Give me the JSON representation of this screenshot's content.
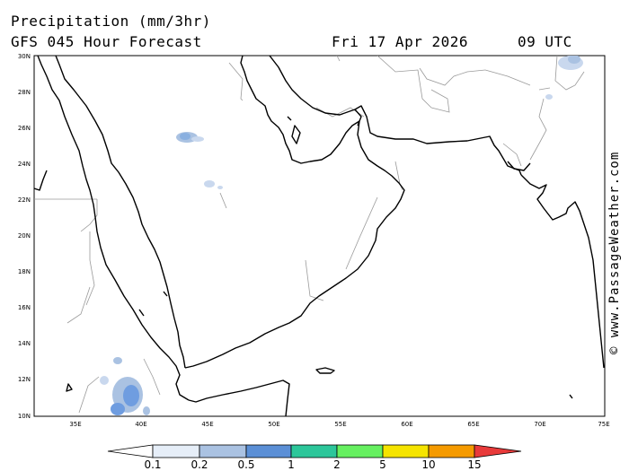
{
  "header": {
    "title": "Precipitation (mm/3hr)",
    "subtitle": "GFS 045 Hour Forecast",
    "date": "Fri 17 Apr 2026",
    "time": "09 UTC"
  },
  "credit": "© www.PassageWeather.com",
  "axes": {
    "lat_labels": [
      "30N",
      "28N",
      "26N",
      "24N",
      "22N",
      "20N",
      "18N",
      "16N",
      "14N",
      "12N",
      "10N"
    ],
    "lon_labels": [
      "35E",
      "40E",
      "45E",
      "50E",
      "55E",
      "60E",
      "65E",
      "70E",
      "75E"
    ]
  },
  "colorbar": {
    "labels": [
      "0.1",
      "0.2",
      "0.5",
      "1",
      "2",
      "5",
      "10",
      "15"
    ],
    "colors": [
      "#ffffff",
      "#e6eef8",
      "#aac2e2",
      "#5b8fd6",
      "#2cc69a",
      "#66f060",
      "#f5e400",
      "#f59a00",
      "#e83a3a"
    ]
  },
  "precip_areas": [
    {
      "region": "Red Sea / Eritrea highlands",
      "level": "0.2-0.5"
    },
    {
      "region": "Central Saudi Arabia",
      "level": "0.2-0.5"
    },
    {
      "region": "Afghanistan (top-right)",
      "level": "0.2"
    }
  ]
}
